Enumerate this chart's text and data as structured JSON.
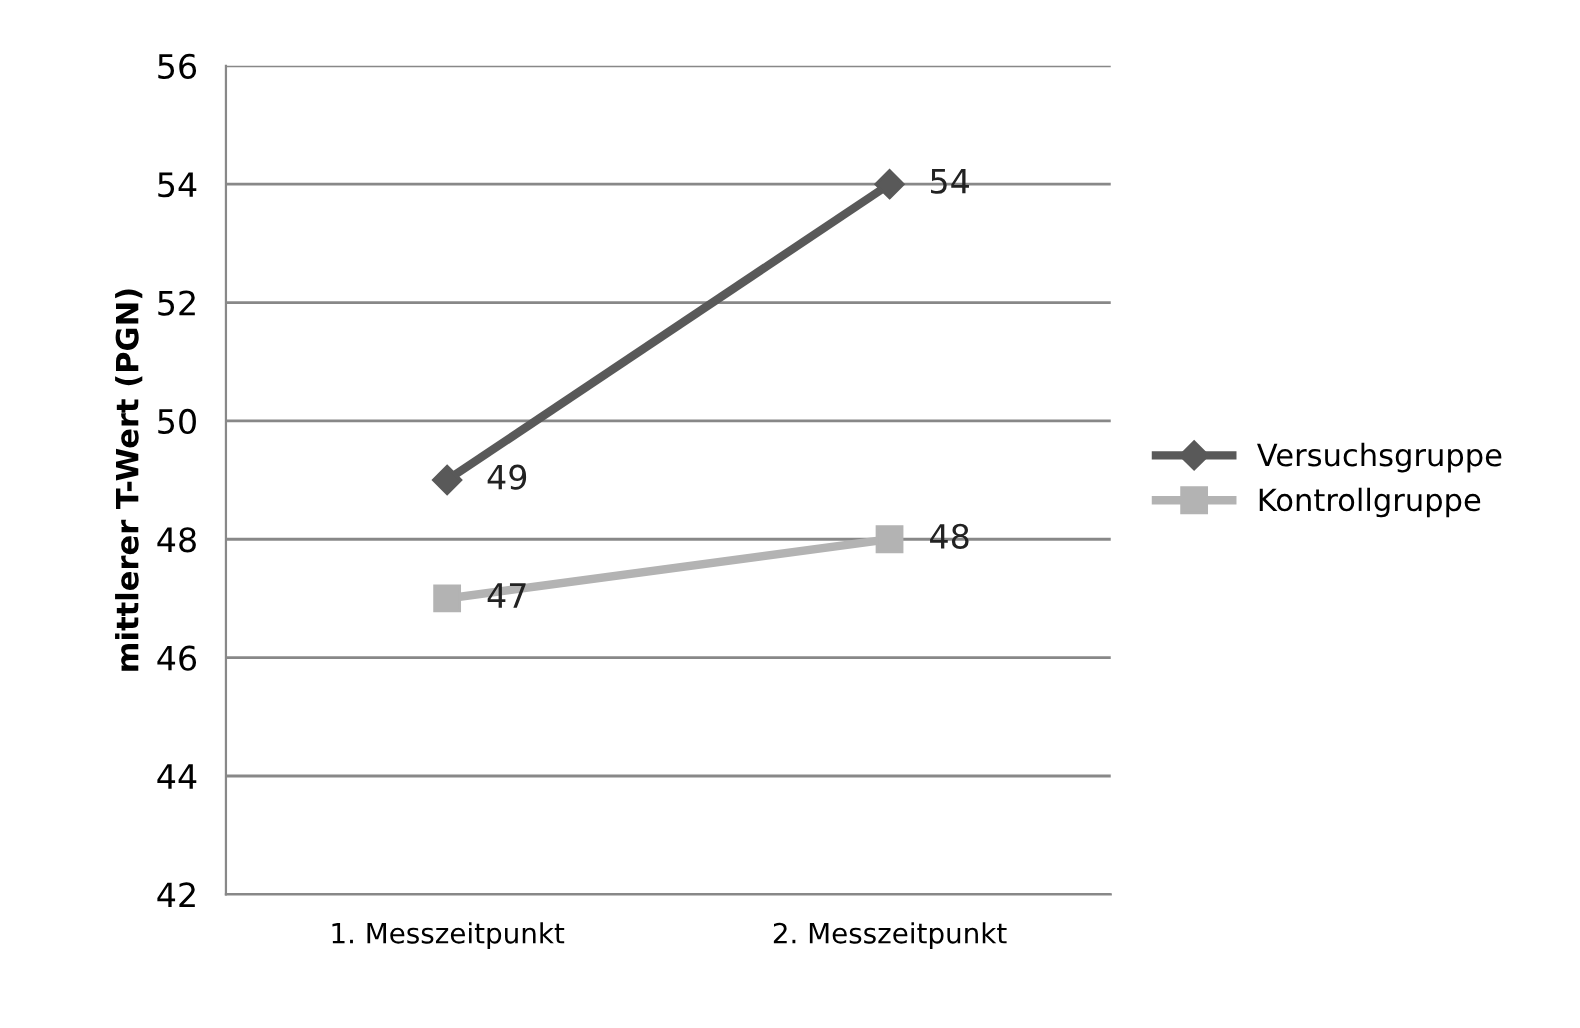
{
  "chart_data": {
    "type": "line",
    "ylabel": "mittlerer T-Wert (PGN)",
    "categories": [
      "1. Messzeitpunkt",
      "2. Messzeitpunkt"
    ],
    "series": [
      {
        "name": "Versuchsgruppe",
        "color": "#595959",
        "values": [
          49,
          54
        ],
        "marker": "diamond"
      },
      {
        "name": "Kontrollgruppe",
        "color": "#b3b3b3",
        "values": [
          47,
          48
        ],
        "marker": "square"
      }
    ],
    "ylim": [
      42,
      56
    ],
    "yticks": [
      42,
      44,
      46,
      48,
      50,
      52,
      54,
      56
    ],
    "grid": "y",
    "legend": "right",
    "data_labels": true,
    "line_style": "solid"
  }
}
